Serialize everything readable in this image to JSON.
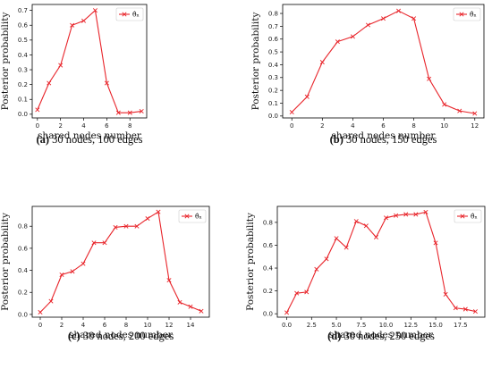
{
  "colors": {
    "series": "#e8242a",
    "frame": "#000000",
    "background": "#ffffff"
  },
  "chart_data": [
    {
      "type": "line",
      "caption_letter": "(a)",
      "caption_text": " 30 nodes, 100 edges",
      "xlabel": "shared nodes number",
      "ylabel": "Posterior probability",
      "legend_position": "top-right",
      "grid": false,
      "xlim": [
        -0.45,
        9.45
      ],
      "ylim": [
        -0.025,
        0.74
      ],
      "xticks": [
        0,
        2,
        4,
        6,
        8
      ],
      "yticks": [
        0.0,
        0.1,
        0.2,
        0.3,
        0.4,
        0.5,
        0.6,
        0.7
      ],
      "xtick_labels": [
        "0",
        "2",
        "4",
        "6",
        "8"
      ],
      "ytick_labels": [
        "0.0",
        "0.1",
        "0.2",
        "0.3",
        "0.4",
        "0.5",
        "0.6",
        "0.7"
      ],
      "series": [
        {
          "name": "θ̂ₙ",
          "x": [
            0,
            1,
            2,
            3,
            4,
            5,
            6,
            7,
            8,
            9
          ],
          "y": [
            0.03,
            0.21,
            0.33,
            0.6,
            0.63,
            0.7,
            0.21,
            0.01,
            0.01,
            0.02
          ]
        }
      ]
    },
    {
      "type": "line",
      "caption_letter": "(b)",
      "caption_text": " 30 nodes, 150 edges",
      "xlabel": "shared nodes number",
      "ylabel": "Posterior probability",
      "legend_position": "top-right",
      "grid": false,
      "xlim": [
        -0.6,
        12.6
      ],
      "ylim": [
        -0.015,
        0.87
      ],
      "xticks": [
        0,
        2,
        4,
        6,
        8,
        10,
        12
      ],
      "yticks": [
        0.0,
        0.1,
        0.2,
        0.3,
        0.4,
        0.5,
        0.6,
        0.7,
        0.8
      ],
      "xtick_labels": [
        "0",
        "2",
        "4",
        "6",
        "8",
        "10",
        "12"
      ],
      "ytick_labels": [
        "0.0",
        "0.1",
        "0.2",
        "0.3",
        "0.4",
        "0.5",
        "0.6",
        "0.7",
        "0.8"
      ],
      "series": [
        {
          "name": "θ̂ₙ",
          "x": [
            0,
            1,
            2,
            3,
            4,
            5,
            6,
            7,
            8,
            9,
            10,
            11,
            12
          ],
          "y": [
            0.03,
            0.15,
            0.42,
            0.58,
            0.62,
            0.71,
            0.76,
            0.82,
            0.76,
            0.29,
            0.09,
            0.04,
            0.02
          ]
        }
      ]
    },
    {
      "type": "line",
      "caption_letter": "(c)",
      "caption_text": " 30 nodes, 200 edges",
      "xlabel": "shared nodes number",
      "ylabel": "Posterior probability",
      "legend_position": "top-right",
      "grid": false,
      "xlim": [
        -0.75,
        15.75
      ],
      "ylim": [
        -0.025,
        0.98
      ],
      "xticks": [
        0,
        2,
        4,
        6,
        8,
        10,
        12,
        14
      ],
      "yticks": [
        0.0,
        0.2,
        0.4,
        0.6,
        0.8
      ],
      "xtick_labels": [
        "0",
        "2",
        "4",
        "6",
        "8",
        "10",
        "12",
        "14"
      ],
      "ytick_labels": [
        "0.0",
        "0.2",
        "0.4",
        "0.6",
        "0.8"
      ],
      "series": [
        {
          "name": "θ̂ₙ",
          "x": [
            0,
            1,
            2,
            3,
            4,
            5,
            6,
            7,
            8,
            9,
            10,
            11,
            12,
            13,
            14,
            15
          ],
          "y": [
            0.02,
            0.12,
            0.36,
            0.39,
            0.46,
            0.65,
            0.65,
            0.79,
            0.8,
            0.8,
            0.87,
            0.93,
            0.31,
            0.11,
            0.07,
            0.03
          ]
        }
      ]
    },
    {
      "type": "line",
      "caption_letter": "(d)",
      "caption_text": " 30 nodes, 250 edges",
      "xlabel": "shared nodes number",
      "ylabel": "Posterior probability",
      "legend_position": "top-right",
      "grid": false,
      "xlim": [
        -0.95,
        19.95
      ],
      "ylim": [
        -0.03,
        0.94
      ],
      "xticks": [
        0,
        2.5,
        5,
        7.5,
        10,
        12.5,
        15,
        17.5
      ],
      "yticks": [
        0.0,
        0.2,
        0.4,
        0.6,
        0.8
      ],
      "xtick_labels": [
        "0.0",
        "2.5",
        "5.0",
        "7.5",
        "10.0",
        "12.5",
        "15.0",
        "17.5"
      ],
      "ytick_labels": [
        "0.0",
        "0.2",
        "0.4",
        "0.6",
        "0.8"
      ],
      "series": [
        {
          "name": "θ̂ₙ",
          "x": [
            0,
            1,
            2,
            3,
            4,
            5,
            6,
            7,
            8,
            9,
            10,
            11,
            12,
            13,
            14,
            15,
            16,
            17,
            18,
            19
          ],
          "y": [
            0.01,
            0.18,
            0.19,
            0.39,
            0.48,
            0.66,
            0.58,
            0.81,
            0.77,
            0.67,
            0.84,
            0.86,
            0.87,
            0.87,
            0.89,
            0.62,
            0.17,
            0.05,
            0.04,
            0.02
          ]
        }
      ]
    }
  ]
}
